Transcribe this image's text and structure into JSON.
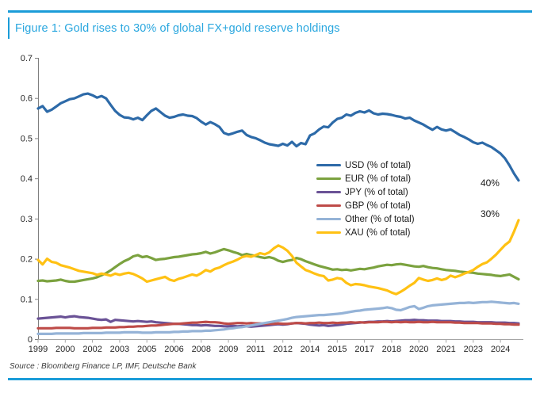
{
  "figure": {
    "title": "Figure 1: Gold rises to 30% of global FX+gold reserve holdings",
    "source": "Source : Bloomberg Finance LP, IMF, Deutsche Bank",
    "title_color": "#2AA7DF",
    "rule_color": "#1B9CD8",
    "axis_text_color": "#262626",
    "y_axis_color": "#7F7F7F",
    "x_axis_color": "#A6A6A6"
  },
  "chart_data": {
    "type": "line",
    "title": "Gold rises to 30% of global FX+gold reserve holdings",
    "x_unit": "quarterly, 1999Q1 to 2025Q3",
    "xlabel": "",
    "ylabel": "",
    "ylim": [
      0,
      0.7
    ],
    "grid": false,
    "legend_position": "center-right, no border",
    "y_tick_labels": [
      "0",
      "0.1",
      "0.2",
      "0.3",
      "0.4",
      "0.5",
      "0.6",
      "0.7"
    ],
    "x_tick_labels": [
      "1999",
      "2000",
      "2002",
      "2003",
      "2005",
      "2006",
      "2008",
      "2009",
      "2011",
      "2012",
      "2014",
      "2015",
      "2017",
      "2018",
      "2020",
      "2021",
      "2023",
      "2024"
    ],
    "x_tick_every_n_points": 6,
    "annotations": [
      {
        "text": "40%",
        "x_index": 99.7,
        "y_value": 0.388
      },
      {
        "text": "30%",
        "x_index": 99.7,
        "y_value": 0.312
      }
    ],
    "series": [
      {
        "name": "USD (% of total)",
        "ticker": "usd",
        "color": "#2D6AA8",
        "values": [
          0.574,
          0.58,
          0.566,
          0.571,
          0.579,
          0.587,
          0.592,
          0.597,
          0.599,
          0.604,
          0.609,
          0.611,
          0.607,
          0.601,
          0.605,
          0.599,
          0.583,
          0.568,
          0.558,
          0.552,
          0.551,
          0.547,
          0.551,
          0.545,
          0.557,
          0.568,
          0.574,
          0.565,
          0.556,
          0.551,
          0.553,
          0.557,
          0.559,
          0.556,
          0.555,
          0.55,
          0.541,
          0.534,
          0.54,
          0.535,
          0.528,
          0.513,
          0.509,
          0.512,
          0.516,
          0.519,
          0.508,
          0.503,
          0.5,
          0.495,
          0.489,
          0.485,
          0.483,
          0.481,
          0.486,
          0.482,
          0.491,
          0.48,
          0.488,
          0.485,
          0.507,
          0.512,
          0.522,
          0.529,
          0.527,
          0.539,
          0.548,
          0.551,
          0.559,
          0.556,
          0.563,
          0.567,
          0.564,
          0.569,
          0.562,
          0.559,
          0.561,
          0.56,
          0.558,
          0.555,
          0.553,
          0.549,
          0.551,
          0.544,
          0.539,
          0.534,
          0.527,
          0.521,
          0.528,
          0.522,
          0.519,
          0.522,
          0.515,
          0.508,
          0.503,
          0.497,
          0.49,
          0.486,
          0.489,
          0.483,
          0.478,
          0.47,
          0.462,
          0.45,
          0.432,
          0.412,
          0.395
        ]
      },
      {
        "name": "EUR (% of total)",
        "ticker": "eur",
        "color": "#7BA23F",
        "values": [
          0.145,
          0.146,
          0.144,
          0.145,
          0.146,
          0.148,
          0.145,
          0.143,
          0.143,
          0.145,
          0.147,
          0.149,
          0.151,
          0.154,
          0.159,
          0.164,
          0.171,
          0.179,
          0.187,
          0.194,
          0.199,
          0.206,
          0.209,
          0.204,
          0.206,
          0.202,
          0.197,
          0.199,
          0.2,
          0.202,
          0.204,
          0.205,
          0.207,
          0.209,
          0.211,
          0.212,
          0.214,
          0.217,
          0.213,
          0.216,
          0.22,
          0.224,
          0.221,
          0.217,
          0.214,
          0.209,
          0.212,
          0.209,
          0.207,
          0.204,
          0.202,
          0.204,
          0.201,
          0.195,
          0.192,
          0.195,
          0.197,
          0.202,
          0.199,
          0.194,
          0.19,
          0.186,
          0.182,
          0.179,
          0.176,
          0.173,
          0.174,
          0.172,
          0.173,
          0.171,
          0.173,
          0.175,
          0.174,
          0.176,
          0.178,
          0.181,
          0.183,
          0.185,
          0.184,
          0.186,
          0.187,
          0.185,
          0.183,
          0.181,
          0.18,
          0.182,
          0.179,
          0.177,
          0.176,
          0.174,
          0.172,
          0.171,
          0.17,
          0.168,
          0.167,
          0.166,
          0.165,
          0.163,
          0.162,
          0.161,
          0.16,
          0.158,
          0.157,
          0.159,
          0.161,
          0.155,
          0.149
        ]
      },
      {
        "name": "JPY (% of total)",
        "ticker": "jpy",
        "color": "#6A5296",
        "values": [
          0.051,
          0.052,
          0.053,
          0.054,
          0.055,
          0.056,
          0.054,
          0.056,
          0.057,
          0.055,
          0.054,
          0.053,
          0.051,
          0.049,
          0.048,
          0.049,
          0.043,
          0.048,
          0.047,
          0.046,
          0.045,
          0.044,
          0.045,
          0.044,
          0.043,
          0.044,
          0.042,
          0.041,
          0.04,
          0.039,
          0.038,
          0.038,
          0.037,
          0.036,
          0.035,
          0.035,
          0.034,
          0.035,
          0.034,
          0.033,
          0.033,
          0.032,
          0.032,
          0.033,
          0.032,
          0.033,
          0.032,
          0.031,
          0.032,
          0.033,
          0.034,
          0.035,
          0.036,
          0.037,
          0.036,
          0.037,
          0.039,
          0.04,
          0.039,
          0.038,
          0.036,
          0.035,
          0.034,
          0.035,
          0.033,
          0.034,
          0.035,
          0.036,
          0.038,
          0.039,
          0.04,
          0.041,
          0.042,
          0.043,
          0.043,
          0.044,
          0.044,
          0.045,
          0.044,
          0.045,
          0.046,
          0.047,
          0.047,
          0.048,
          0.047,
          0.047,
          0.046,
          0.046,
          0.046,
          0.045,
          0.045,
          0.045,
          0.044,
          0.044,
          0.043,
          0.043,
          0.043,
          0.042,
          0.042,
          0.042,
          0.042,
          0.041,
          0.041,
          0.041,
          0.04,
          0.04,
          0.039
        ]
      },
      {
        "name": "GBP (% of total)",
        "ticker": "gbp",
        "color": "#BE4B48",
        "values": [
          0.027,
          0.027,
          0.027,
          0.027,
          0.028,
          0.028,
          0.028,
          0.028,
          0.027,
          0.027,
          0.027,
          0.027,
          0.028,
          0.028,
          0.028,
          0.029,
          0.029,
          0.029,
          0.03,
          0.03,
          0.031,
          0.031,
          0.032,
          0.032,
          0.033,
          0.034,
          0.034,
          0.035,
          0.036,
          0.037,
          0.038,
          0.038,
          0.039,
          0.04,
          0.041,
          0.041,
          0.042,
          0.043,
          0.042,
          0.042,
          0.041,
          0.039,
          0.038,
          0.039,
          0.04,
          0.04,
          0.039,
          0.04,
          0.039,
          0.039,
          0.038,
          0.038,
          0.038,
          0.039,
          0.038,
          0.038,
          0.039,
          0.04,
          0.04,
          0.039,
          0.04,
          0.04,
          0.041,
          0.04,
          0.04,
          0.041,
          0.04,
          0.041,
          0.041,
          0.042,
          0.041,
          0.042,
          0.041,
          0.042,
          0.042,
          0.042,
          0.043,
          0.043,
          0.042,
          0.043,
          0.042,
          0.043,
          0.042,
          0.042,
          0.043,
          0.042,
          0.042,
          0.043,
          0.042,
          0.042,
          0.042,
          0.042,
          0.041,
          0.041,
          0.04,
          0.04,
          0.04,
          0.04,
          0.039,
          0.039,
          0.039,
          0.038,
          0.038,
          0.037,
          0.037,
          0.036,
          0.036
        ]
      },
      {
        "name": "Other (% of total)",
        "ticker": "other",
        "color": "#95B3D7",
        "values": [
          0.013,
          0.013,
          0.013,
          0.013,
          0.014,
          0.014,
          0.014,
          0.014,
          0.014,
          0.014,
          0.015,
          0.015,
          0.015,
          0.015,
          0.015,
          0.016,
          0.016,
          0.016,
          0.016,
          0.017,
          0.017,
          0.017,
          0.017,
          0.016,
          0.016,
          0.016,
          0.017,
          0.017,
          0.017,
          0.017,
          0.018,
          0.018,
          0.019,
          0.019,
          0.02,
          0.02,
          0.02,
          0.021,
          0.021,
          0.022,
          0.023,
          0.024,
          0.026,
          0.027,
          0.029,
          0.03,
          0.032,
          0.034,
          0.036,
          0.038,
          0.04,
          0.042,
          0.044,
          0.046,
          0.048,
          0.05,
          0.053,
          0.055,
          0.056,
          0.057,
          0.058,
          0.059,
          0.06,
          0.06,
          0.061,
          0.062,
          0.063,
          0.064,
          0.066,
          0.068,
          0.07,
          0.071,
          0.073,
          0.074,
          0.075,
          0.076,
          0.077,
          0.079,
          0.077,
          0.073,
          0.072,
          0.076,
          0.08,
          0.082,
          0.075,
          0.078,
          0.082,
          0.084,
          0.085,
          0.086,
          0.087,
          0.088,
          0.089,
          0.09,
          0.09,
          0.091,
          0.09,
          0.091,
          0.092,
          0.092,
          0.093,
          0.092,
          0.091,
          0.09,
          0.089,
          0.09,
          0.088
        ]
      },
      {
        "name": "XAU (% of total)",
        "ticker": "xau",
        "color": "#FFC113",
        "values": [
          0.197,
          0.186,
          0.2,
          0.192,
          0.19,
          0.184,
          0.181,
          0.178,
          0.174,
          0.17,
          0.168,
          0.166,
          0.164,
          0.16,
          0.163,
          0.161,
          0.158,
          0.163,
          0.16,
          0.163,
          0.165,
          0.162,
          0.157,
          0.151,
          0.143,
          0.146,
          0.149,
          0.152,
          0.155,
          0.148,
          0.145,
          0.15,
          0.153,
          0.157,
          0.161,
          0.158,
          0.164,
          0.172,
          0.168,
          0.175,
          0.178,
          0.184,
          0.189,
          0.193,
          0.198,
          0.204,
          0.207,
          0.205,
          0.209,
          0.214,
          0.211,
          0.216,
          0.226,
          0.233,
          0.228,
          0.22,
          0.207,
          0.19,
          0.181,
          0.172,
          0.168,
          0.163,
          0.159,
          0.157,
          0.146,
          0.148,
          0.152,
          0.15,
          0.14,
          0.134,
          0.137,
          0.136,
          0.134,
          0.131,
          0.129,
          0.127,
          0.124,
          0.121,
          0.116,
          0.112,
          0.118,
          0.125,
          0.133,
          0.14,
          0.152,
          0.148,
          0.145,
          0.147,
          0.151,
          0.147,
          0.15,
          0.158,
          0.154,
          0.158,
          0.163,
          0.167,
          0.172,
          0.18,
          0.187,
          0.191,
          0.2,
          0.21,
          0.222,
          0.234,
          0.243,
          0.268,
          0.296
        ]
      }
    ]
  }
}
